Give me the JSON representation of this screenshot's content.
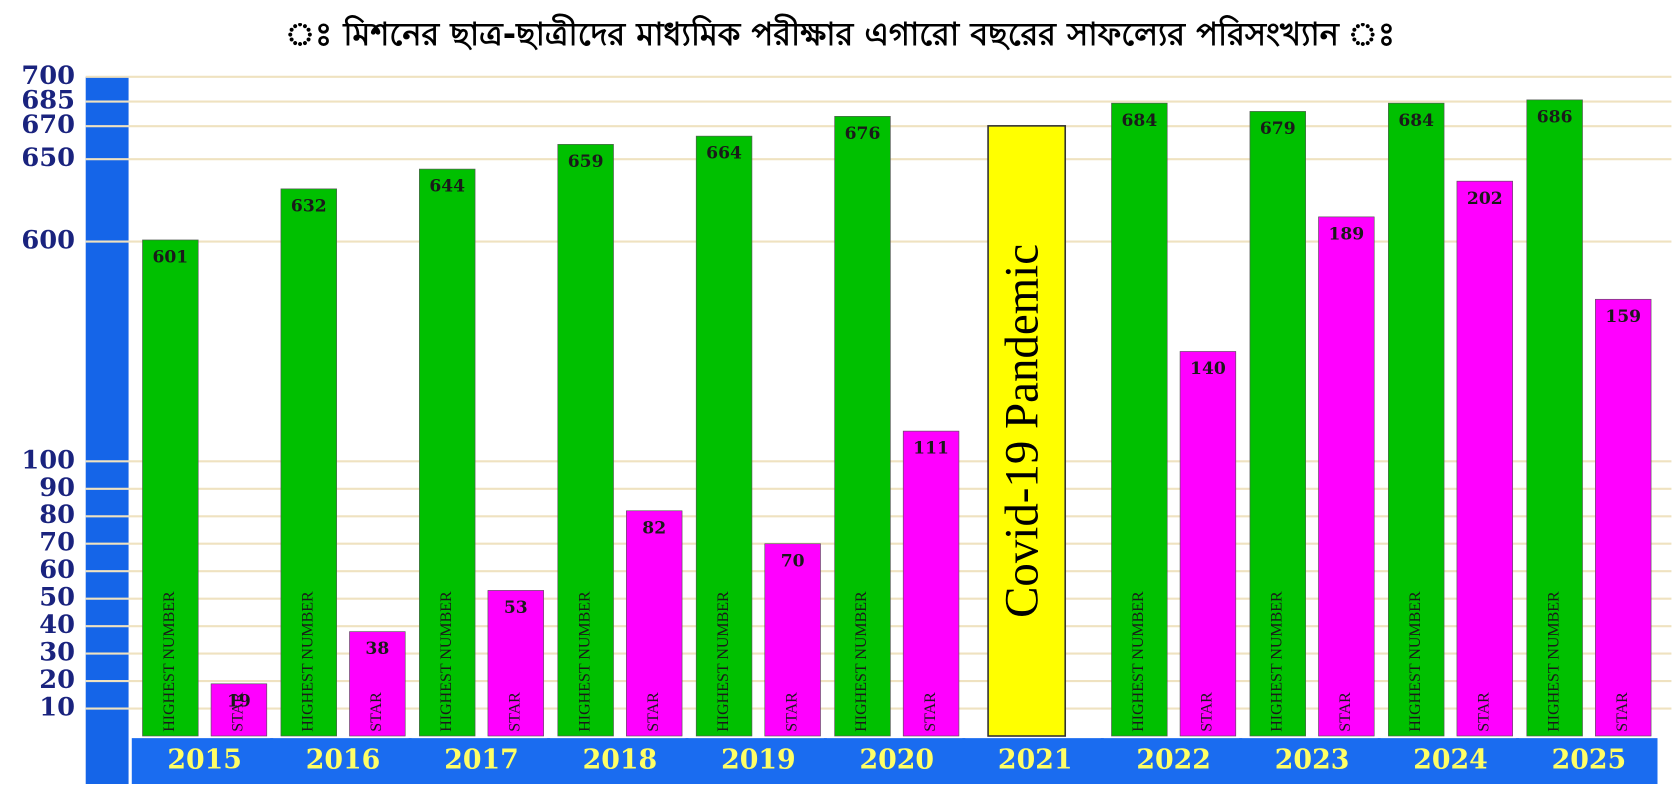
{
  "chart_data": {
    "type": "bar",
    "title": "ঃ মিশনের ছাত্র-ছাত্রীদের মাধ্যমিক পরীক্ষার এগারো বছরের সাফল্যের পরিসংখ্যান ঃ",
    "categories": [
      "2015",
      "2016",
      "2017",
      "2018",
      "2019",
      "2020",
      "2021",
      "2022",
      "2023",
      "2024",
      "2025"
    ],
    "series": [
      {
        "name": "HIGHEST NUMBER",
        "color": "#00c000",
        "axis": "y2",
        "values": [
          601,
          632,
          644,
          659,
          664,
          676,
          null,
          684,
          679,
          684,
          686
        ]
      },
      {
        "name": "STAR",
        "color": "#ff00ff",
        "values": [
          19,
          38,
          53,
          82,
          70,
          111,
          null,
          140,
          189,
          202,
          159
        ]
      }
    ],
    "annotation": "Covid-19 Pandemic",
    "ylim": [
      0,
      240
    ],
    "yticks": [
      10,
      20,
      30,
      40,
      50,
      60,
      70,
      80,
      90,
      100
    ],
    "y2lim": [
      300,
      700
    ],
    "y2ticks": [
      600,
      650,
      670,
      685,
      700
    ],
    "grid": true
  }
}
